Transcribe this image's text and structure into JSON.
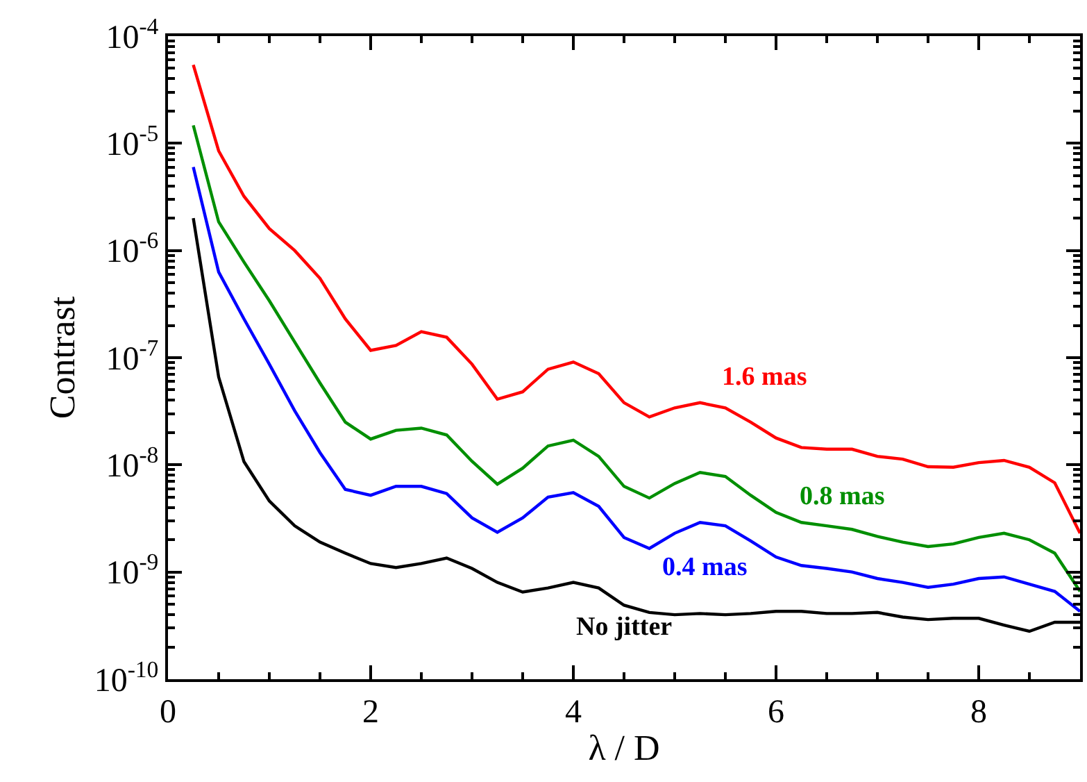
{
  "chart_data": {
    "type": "line",
    "xlabel": "λ / D",
    "ylabel": "Contrast",
    "log": "y",
    "legend": false,
    "marker": "none",
    "line_style": "solid",
    "x": [
      0.25,
      0.5,
      0.75,
      1.0,
      1.25,
      1.5,
      1.75,
      2.0,
      2.25,
      2.5,
      2.75,
      3.0,
      3.25,
      3.5,
      3.75,
      4.0,
      4.25,
      4.5,
      4.75,
      5.0,
      5.25,
      5.5,
      5.75,
      6.0,
      6.25,
      6.5,
      6.75,
      7.0,
      7.25,
      7.5,
      7.75,
      8.0,
      8.25,
      8.5,
      8.75,
      9.0
    ],
    "xlim": [
      0,
      9
    ],
    "xticks": [
      0,
      2,
      4,
      6,
      8
    ],
    "ylim": [
      1e-10,
      0.0001
    ],
    "yticks": [
      {
        "value": 1e-10,
        "label": "10$^{-10}$"
      },
      {
        "value": 1e-09,
        "label": "10$^{-9}$"
      },
      {
        "value": 1e-08,
        "label": "10$^{-8}$"
      },
      {
        "value": 1e-07,
        "label": "10$^{-7}$"
      },
      {
        "value": 1e-06,
        "label": "10$^{-6}$"
      },
      {
        "value": 1e-05,
        "label": "10$^{-5}$"
      },
      {
        "value": 0.0001,
        "label": "10$^{-4}$"
      }
    ],
    "series": [
      {
        "name": "1.6 mas",
        "color": "#ff0000",
        "values": [
          5.4e-05,
          8.5e-06,
          3.2e-06,
          1.6e-06,
          1e-06,
          5.5e-07,
          2.3e-07,
          1.17e-07,
          1.3e-07,
          1.75e-07,
          1.55e-07,
          8.7e-08,
          4.1e-08,
          4.8e-08,
          7.8e-08,
          9.1e-08,
          7.1e-08,
          3.8e-08,
          2.8e-08,
          3.4e-08,
          3.8e-08,
          3.4e-08,
          2.5e-08,
          1.78e-08,
          1.45e-08,
          1.4e-08,
          1.4e-08,
          1.2e-08,
          1.13e-08,
          9.6e-09,
          9.5e-09,
          1.05e-08,
          1.1e-08,
          9.5e-09,
          6.8e-09,
          2.3e-09
        ]
      },
      {
        "name": "0.8 mas",
        "color": "#008f00",
        "values": [
          1.47e-05,
          1.85e-06,
          7.8e-07,
          3.4e-07,
          1.4e-07,
          5.8e-08,
          2.5e-08,
          1.74e-08,
          2.1e-08,
          2.2e-08,
          1.9e-08,
          1.08e-08,
          6.6e-09,
          9.3e-09,
          1.5e-08,
          1.7e-08,
          1.2e-08,
          6.3e-09,
          4.9e-09,
          6.7e-09,
          8.5e-09,
          7.8e-09,
          5.2e-09,
          3.6e-09,
          2.9e-09,
          2.7e-09,
          2.5e-09,
          2.15e-09,
          1.9e-09,
          1.73e-09,
          1.83e-09,
          2.1e-09,
          2.3e-09,
          2e-09,
          1.5e-09,
          6.6e-10
        ]
      },
      {
        "name": "0.4 mas",
        "color": "#0000ff",
        "values": [
          6e-06,
          6.3e-07,
          2.3e-07,
          8.7e-08,
          3.2e-08,
          1.3e-08,
          5.9e-09,
          5.2e-09,
          6.3e-09,
          6.3e-09,
          5.4e-09,
          3.2e-09,
          2.35e-09,
          3.2e-09,
          5e-09,
          5.5e-09,
          4.1e-09,
          2.1e-09,
          1.66e-09,
          2.3e-09,
          2.9e-09,
          2.7e-09,
          1.95e-09,
          1.38e-09,
          1.15e-09,
          1.08e-09,
          1e-09,
          8.7e-10,
          8e-10,
          7.2e-10,
          7.7e-10,
          8.7e-10,
          9e-10,
          7.7e-10,
          6.6e-10,
          4.3e-10
        ]
      },
      {
        "name": "No jitter",
        "color": "#000000",
        "values": [
          2e-06,
          6.6e-08,
          1.07e-08,
          4.6e-09,
          2.7e-09,
          1.9e-09,
          1.5e-09,
          1.2e-09,
          1.1e-09,
          1.2e-09,
          1.35e-09,
          1.08e-09,
          8e-10,
          6.5e-10,
          7.1e-10,
          8e-10,
          7.1e-10,
          4.9e-10,
          4.2e-10,
          4e-10,
          4.1e-10,
          4e-10,
          4.1e-10,
          4.3e-10,
          4.3e-10,
          4.1e-10,
          4.1e-10,
          4.2e-10,
          3.8e-10,
          3.6e-10,
          3.7e-10,
          3.7e-10,
          3.2e-10,
          2.8e-10,
          3.4e-10,
          3.4e-10
        ]
      }
    ]
  }
}
